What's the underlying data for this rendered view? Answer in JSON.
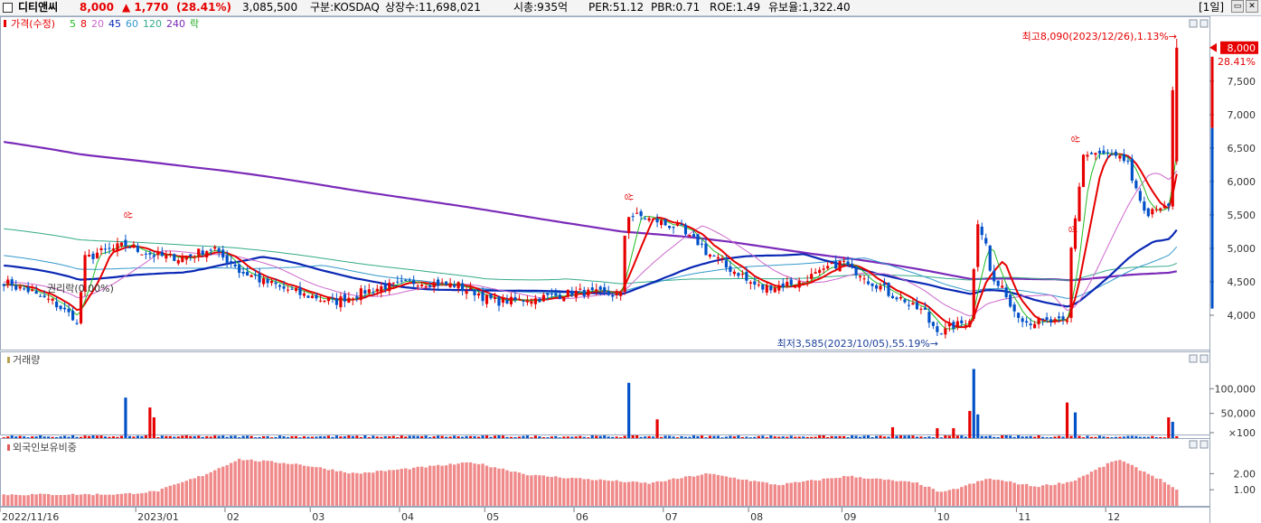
{
  "header": {
    "stock_name": "디티앤씨",
    "price": "8,000",
    "change": "▲ 1,770",
    "change_pct": "(28.41%)",
    "volume": "3,085,500",
    "market": "구분:KOSDAQ",
    "listed_shares": "상장수:11,698,021",
    "market_cap": "시총:935억",
    "per": "PER:51.12",
    "pbr": "PBR:0.71",
    "roe": "ROE:1.49",
    "float_ratio": "유보율:1,322.40",
    "period": "[1일]",
    "colors": {
      "up": "#e60000",
      "down": "#0050c8"
    }
  },
  "chart_data": [
    {
      "type": "candlestick",
      "title": "가격(수정)",
      "legend": [
        {
          "label": "가격(수정)",
          "color": "#e60000"
        },
        {
          "label": "5",
          "color": "#22bb22"
        },
        {
          "label": "8",
          "color": "#e60000"
        },
        {
          "label": "20",
          "color": "#cc66cc"
        },
        {
          "label": "45",
          "color": "#0a28b4"
        },
        {
          "label": "60",
          "color": "#3399cc"
        },
        {
          "label": "120",
          "color": "#33aa88"
        },
        {
          "label": "240",
          "color": "#7a2ab8"
        },
        {
          "label": "락",
          "color": "#22aa22"
        }
      ],
      "x_ticks": [
        "2022/11/16",
        "2023/01",
        "02",
        "03",
        "04",
        "05",
        "06",
        "07",
        "08",
        "09",
        "10",
        "11",
        "12"
      ],
      "y_ticks": [
        "7,500",
        "7,000",
        "6,500",
        "6,000",
        "5,500",
        "5,000",
        "4,500",
        "4,000"
      ],
      "ylim": [
        3500,
        8200
      ],
      "current_price_label": "8,000",
      "current_change_label": "28.41%",
      "annotations": {
        "high": "최고8,090(2023/12/26),1.13%→",
        "low": "최저3,585(2023/10/05),55.19%→",
        "ex_rights": "권리락(0.00%)",
        "up_markers": [
          "상",
          "상",
          "상",
          "상"
        ]
      },
      "close_trend": [
        [
          "2022-11-16",
          4500
        ],
        [
          "2022-11-25",
          4350
        ],
        [
          "2022-12-05",
          4150
        ],
        [
          "2022-12-12",
          3850
        ],
        [
          "2022-12-14",
          4850
        ],
        [
          "2022-12-20",
          4950
        ],
        [
          "2022-12-28",
          5050
        ],
        [
          "2023-01-06",
          4900
        ],
        [
          "2023-01-16",
          4850
        ],
        [
          "2023-01-27",
          5000
        ],
        [
          "2023-02-06",
          4650
        ],
        [
          "2023-02-17",
          4450
        ],
        [
          "2023-02-28",
          4300
        ],
        [
          "2023-03-10",
          4200
        ],
        [
          "2023-03-24",
          4400
        ],
        [
          "2023-04-07",
          4500
        ],
        [
          "2023-04-21",
          4450
        ],
        [
          "2023-05-05",
          4200
        ],
        [
          "2023-05-19",
          4250
        ],
        [
          "2023-06-02",
          4350
        ],
        [
          "2023-06-16",
          4300
        ],
        [
          "2023-06-20",
          5500
        ],
        [
          "2023-06-26",
          5450
        ],
        [
          "2023-07-07",
          5300
        ],
        [
          "2023-07-21",
          4800
        ],
        [
          "2023-08-04",
          4400
        ],
        [
          "2023-08-18",
          4500
        ],
        [
          "2023-09-01",
          4800
        ],
        [
          "2023-09-15",
          4400
        ],
        [
          "2023-09-29",
          4050
        ],
        [
          "2023-10-05",
          3750
        ],
        [
          "2023-10-16",
          3950
        ],
        [
          "2023-10-18",
          5400
        ],
        [
          "2023-10-24",
          4500
        ],
        [
          "2023-11-03",
          3900
        ],
        [
          "2023-11-17",
          3900
        ],
        [
          "2023-11-20",
          5000
        ],
        [
          "2023-11-23",
          6400
        ],
        [
          "2023-12-01",
          6400
        ],
        [
          "2023-12-08",
          6300
        ],
        [
          "2023-12-15",
          5500
        ],
        [
          "2023-12-22",
          5600
        ],
        [
          "2023-12-26",
          8000
        ]
      ]
    },
    {
      "type": "bar",
      "title": "거래량",
      "y_ticks": [
        "100,000",
        "50,000",
        "×100"
      ],
      "ylim": [
        0,
        150000
      ]
    },
    {
      "type": "bar",
      "title": "외국인보유비중",
      "y_ticks": [
        "2.00",
        "1.00"
      ],
      "ylim": [
        0,
        3.2
      ]
    }
  ]
}
